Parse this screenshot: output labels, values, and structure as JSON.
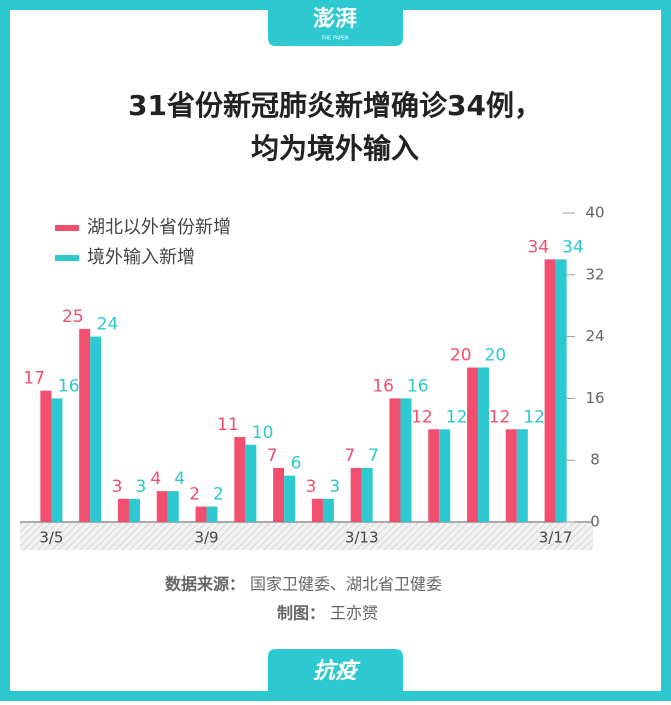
{
  "header": {
    "logo": "澎湃",
    "logo_sub": "THE PAPER"
  },
  "chart_data": {
    "type": "bar",
    "title": [
      "31省份新冠肺炎新增确诊34例，",
      "均为境外输入"
    ],
    "categories": [
      "3/5",
      null,
      null,
      null,
      "3/9",
      null,
      null,
      null,
      "3/13",
      null,
      null,
      null,
      null,
      "3/17"
    ],
    "series": [
      {
        "name": "湖北以外省份新增",
        "color": "#f0506e",
        "values": [
          17,
          25,
          3,
          4,
          2,
          11,
          7,
          3,
          7,
          16,
          12,
          20,
          12,
          34
        ]
      },
      {
        "name": "境外输入新增",
        "color": "#2ec8d0",
        "values": [
          16,
          24,
          3,
          4,
          2,
          10,
          6,
          3,
          7,
          16,
          12,
          20,
          12,
          34
        ]
      }
    ],
    "ylim": [
      0,
      40
    ],
    "yticks": [
      0,
      8,
      16,
      24,
      32,
      40
    ],
    "legend": "top-left"
  },
  "source": {
    "label": "数据来源：",
    "text": "国家卫健委、湖北省卫健委"
  },
  "credit": {
    "label": "制图：",
    "text": "王亦赟"
  },
  "footer": {
    "tag": "抗疫"
  }
}
